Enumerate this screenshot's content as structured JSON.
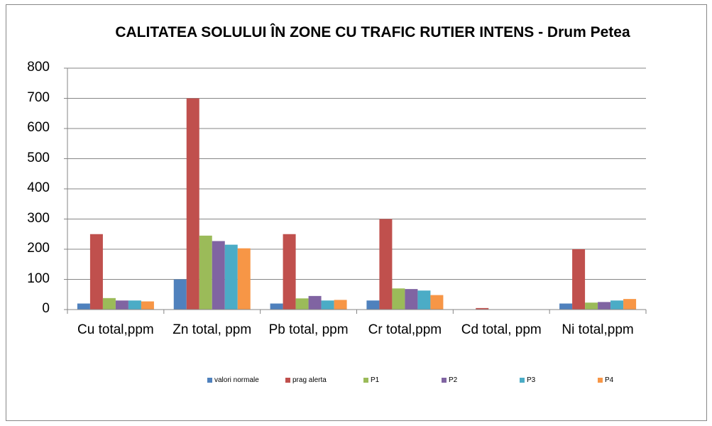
{
  "chart_data": {
    "type": "bar",
    "title": "CALITATEA SOLULUI ÎN ZONE CU TRAFIC RUTIER INTENS - Drum Petea",
    "categories": [
      "Cu total,ppm",
      "Zn total, ppm",
      "Pb total, ppm",
      "Cr total,ppm",
      "Cd total, ppm",
      "Ni total,ppm"
    ],
    "series": [
      {
        "name": "valori normale",
        "color": "#4f81bd",
        "values": [
          20,
          100,
          20,
          30,
          1,
          20
        ]
      },
      {
        "name": "prag alerta",
        "color": "#c0504d",
        "values": [
          250,
          700,
          250,
          300,
          5,
          200
        ]
      },
      {
        "name": "P1",
        "color": "#9bbb59",
        "values": [
          38,
          245,
          37,
          70,
          0.5,
          23
        ]
      },
      {
        "name": "P2",
        "color": "#8064a2",
        "values": [
          30,
          227,
          45,
          68,
          0.5,
          25
        ]
      },
      {
        "name": "P3",
        "color": "#4bacc6",
        "values": [
          30,
          215,
          30,
          63,
          0.5,
          30
        ]
      },
      {
        "name": "P4",
        "color": "#f79646",
        "values": [
          27,
          203,
          32,
          48,
          0.5,
          35
        ]
      }
    ],
    "ylim": [
      0,
      800
    ],
    "yticks": [
      0,
      100,
      200,
      300,
      400,
      500,
      600,
      700,
      800
    ],
    "grid": true,
    "legend": "bottom"
  }
}
